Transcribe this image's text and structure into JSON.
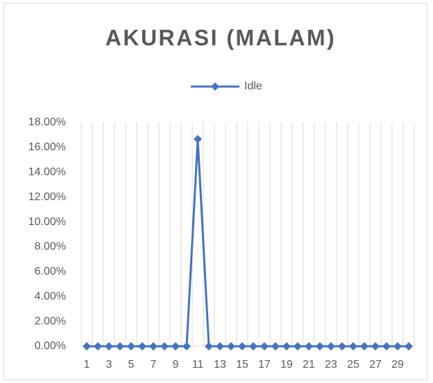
{
  "chart_data": {
    "type": "line",
    "title": "AKURASI (MALAM)",
    "categories": [
      1,
      null,
      3,
      null,
      5,
      null,
      7,
      null,
      9,
      null,
      11,
      null,
      13,
      null,
      15,
      null,
      17,
      null,
      19,
      null,
      21,
      null,
      23,
      null,
      25,
      null,
      27,
      null,
      29,
      null
    ],
    "series": [
      {
        "name": "Idle",
        "color": "#4472c4",
        "values": [
          0,
          0,
          0,
          0,
          0,
          0,
          0,
          0,
          0,
          0,
          16.67,
          0,
          0,
          0,
          0,
          0,
          0,
          0,
          0,
          0,
          0,
          0,
          0,
          0,
          0,
          0,
          0,
          0,
          0,
          0
        ]
      }
    ],
    "ylim": [
      0,
      18
    ],
    "yticks": [
      {
        "value": 0,
        "label": "0.00%"
      },
      {
        "value": 2,
        "label": "2.00%"
      },
      {
        "value": 4,
        "label": "4.00%"
      },
      {
        "value": 6,
        "label": "6.00%"
      },
      {
        "value": 8,
        "label": "8.00%"
      },
      {
        "value": 10,
        "label": "10.00%"
      },
      {
        "value": 12,
        "label": "12.00%"
      },
      {
        "value": 14,
        "label": "14.00%"
      },
      {
        "value": 16,
        "label": "16.00%"
      },
      {
        "value": 18,
        "label": "18.00%"
      }
    ],
    "legend": "top",
    "grid": "vertical"
  }
}
